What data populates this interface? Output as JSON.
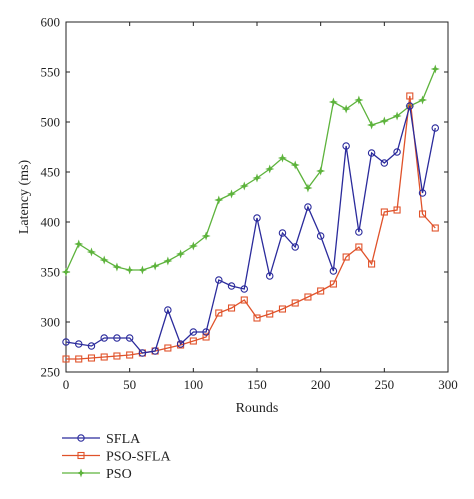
{
  "chart_data": {
    "type": "line",
    "xlabel": "Rounds",
    "ylabel": "Latency (ms)",
    "xlim": [
      0,
      300
    ],
    "ylim": [
      250,
      600
    ],
    "xticks": [
      0,
      50,
      100,
      150,
      200,
      250,
      300
    ],
    "yticks": [
      250,
      300,
      350,
      400,
      450,
      500,
      550,
      600
    ],
    "grid": false,
    "legend_position": "bottom-left",
    "x": [
      0,
      10,
      20,
      30,
      40,
      50,
      60,
      70,
      80,
      90,
      100,
      110,
      120,
      130,
      140,
      150,
      160,
      170,
      180,
      190,
      200,
      210,
      220,
      230,
      240,
      250,
      260,
      270,
      280,
      290
    ],
    "series": [
      {
        "name": "SFLA",
        "color": "#2b2b9c",
        "marker": "circle",
        "values": [
          280,
          278,
          276,
          284,
          284,
          284,
          269,
          271,
          312,
          278,
          290,
          290,
          342,
          336,
          333,
          404,
          346,
          389,
          375,
          415,
          386,
          351,
          476,
          390,
          469,
          459,
          470,
          516,
          429,
          494
        ]
      },
      {
        "name": "PSO-SFLA",
        "color": "#e0522a",
        "marker": "square",
        "values": [
          263,
          263,
          264,
          265,
          266,
          267,
          269,
          271,
          274,
          277,
          281,
          285,
          309,
          314,
          322,
          304,
          308,
          313,
          319,
          325,
          331,
          338,
          365,
          375,
          358,
          410,
          412,
          526,
          408,
          394
        ]
      },
      {
        "name": "PSO",
        "color": "#5db33c",
        "marker": "star",
        "values": [
          350,
          378,
          370,
          362,
          355,
          352,
          352,
          356,
          361,
          368,
          376,
          386,
          422,
          428,
          436,
          444,
          453,
          464,
          457,
          434,
          451,
          520,
          513,
          522,
          497,
          501,
          506,
          516,
          522,
          553
        ]
      }
    ]
  }
}
